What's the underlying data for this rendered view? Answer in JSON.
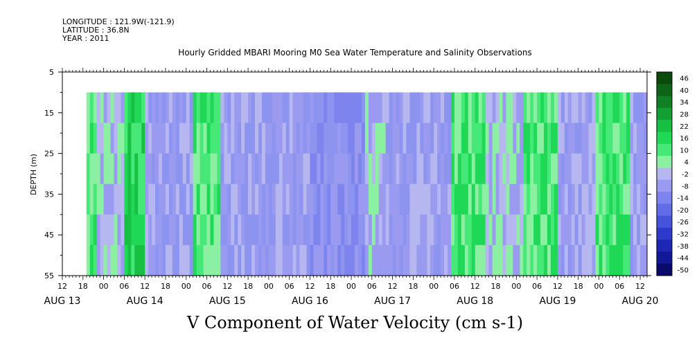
{
  "header": {
    "longitude": "LONGITUDE : 121.9W(-121.9)",
    "latitude": "LATITUDE : 36.8N",
    "year": "YEAR : 2011"
  },
  "chart_data": {
    "type": "heatmap",
    "title": "Hourly Gridded MBARI Mooring M0 Sea Water Temperature and Salinity Observations",
    "xlabel": "V Component of Water Velocity (cm s-1)",
    "ylabel": "DEPTH (m)",
    "y_ticks": [
      "5",
      "15",
      "25",
      "35",
      "45",
      "55"
    ],
    "ylim": [
      55,
      5
    ],
    "data_depth_range": [
      10,
      55
    ],
    "x_hour_ticks": [
      "12",
      "18",
      "00",
      "06",
      "12",
      "18",
      "00",
      "06",
      "12",
      "18",
      "00",
      "06",
      "12",
      "18",
      "00",
      "06",
      "12",
      "18",
      "00",
      "06",
      "12",
      "18",
      "00",
      "06",
      "12",
      "18",
      "00",
      "06",
      "12"
    ],
    "x_day_labels": [
      "AUG 13",
      "AUG 14",
      "AUG 15",
      "AUG 16",
      "AUG 17",
      "AUG 18",
      "AUG 19",
      "AUG 20"
    ],
    "time_start": "AUG 13 12:00",
    "time_end": "AUG 20 14:00",
    "data_start": "AUG 13 19:00",
    "band_pattern_hours": [
      {
        "start": 19,
        "end": 22,
        "band": "positive"
      },
      {
        "start": 22,
        "end": 30,
        "band": "mixed"
      },
      {
        "start": 30,
        "end": 36,
        "band": "strong-positive"
      },
      {
        "start": 36,
        "end": 50,
        "band": "negative"
      },
      {
        "start": 50,
        "end": 58,
        "band": "positive"
      },
      {
        "start": 58,
        "end": 84,
        "band": "negative"
      },
      {
        "start": 84,
        "end": 100,
        "band": "strong-negative"
      },
      {
        "start": 100,
        "end": 106,
        "band": "mixed"
      },
      {
        "start": 106,
        "end": 125,
        "band": "negative"
      },
      {
        "start": 125,
        "end": 135,
        "band": "positive"
      },
      {
        "start": 135,
        "end": 146,
        "band": "mixed"
      },
      {
        "start": 146,
        "end": 156,
        "band": "positive"
      },
      {
        "start": 156,
        "end": 167,
        "band": "negative"
      },
      {
        "start": 167,
        "end": 177,
        "band": "positive"
      },
      {
        "start": 177,
        "end": 184,
        "band": "negative"
      }
    ],
    "colorbar": {
      "labels": [
        "46",
        "40",
        "34",
        "28",
        "22",
        "16",
        "10",
        "4",
        "-2",
        "-8",
        "-14",
        "-20",
        "-26",
        "-32",
        "-38",
        "-44",
        "-50"
      ],
      "colors": [
        "#0a4a0a",
        "#0d6416",
        "#108024",
        "#13a033",
        "#17c043",
        "#1fd956",
        "#46e878",
        "#8cf0a2",
        "#b6b6f0",
        "#9a9af0",
        "#7e84ee",
        "#626ce6",
        "#4654dc",
        "#2e3acc",
        "#1e26b4",
        "#121896",
        "#0a0a6a"
      ]
    }
  }
}
